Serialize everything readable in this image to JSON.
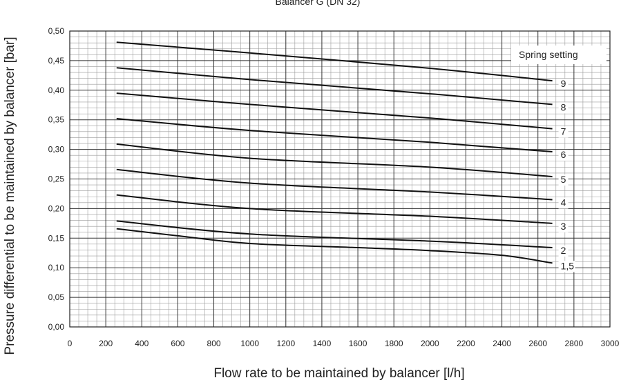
{
  "chart_data": {
    "type": "line",
    "title": "Balancer G (DN 32)",
    "xlabel": "Flow rate to be maintained by balancer [l/h]",
    "ylabel": "Pressure differential to be maintained by balancer [bar]",
    "xlim": [
      0,
      3000
    ],
    "ylim": [
      0,
      0.5
    ],
    "x_ticks": [
      "0",
      "200",
      "400",
      "600",
      "800",
      "1000",
      "1200",
      "1400",
      "1600",
      "1800",
      "2000",
      "2200",
      "2400",
      "2600",
      "2800",
      "3000"
    ],
    "y_ticks": [
      "0,00",
      "0,05",
      "0,10",
      "0,15",
      "0,20",
      "0,25",
      "0,30",
      "0,35",
      "0,40",
      "0,45",
      "0,50"
    ],
    "grid": true,
    "legend_title": "Spring setting",
    "series": [
      {
        "name": "9",
        "x": [
          260,
          1000,
          2000,
          2680
        ],
        "y": [
          0.481,
          0.463,
          0.437,
          0.416
        ]
      },
      {
        "name": "8",
        "x": [
          260,
          1000,
          2000,
          2680
        ],
        "y": [
          0.438,
          0.418,
          0.394,
          0.376
        ]
      },
      {
        "name": "7",
        "x": [
          260,
          1000,
          2000,
          2680
        ],
        "y": [
          0.395,
          0.376,
          0.353,
          0.335
        ]
      },
      {
        "name": "6",
        "x": [
          260,
          1000,
          2000,
          2680
        ],
        "y": [
          0.352,
          0.332,
          0.312,
          0.296
        ]
      },
      {
        "name": "5",
        "x": [
          260,
          1000,
          2000,
          2680
        ],
        "y": [
          0.309,
          0.285,
          0.27,
          0.254
        ]
      },
      {
        "name": "4",
        "x": [
          260,
          1000,
          2000,
          2680
        ],
        "y": [
          0.266,
          0.243,
          0.228,
          0.215
        ]
      },
      {
        "name": "3",
        "x": [
          260,
          1000,
          2000,
          2680
        ],
        "y": [
          0.223,
          0.2,
          0.187,
          0.175
        ]
      },
      {
        "name": "2",
        "x": [
          260,
          1000,
          2000,
          2680
        ],
        "y": [
          0.179,
          0.157,
          0.145,
          0.134
        ]
      },
      {
        "name": "1,5",
        "x": [
          260,
          600,
          1000,
          1600,
          2000,
          2400,
          2680
        ],
        "y": [
          0.166,
          0.154,
          0.141,
          0.134,
          0.129,
          0.121,
          0.108
        ]
      }
    ]
  }
}
